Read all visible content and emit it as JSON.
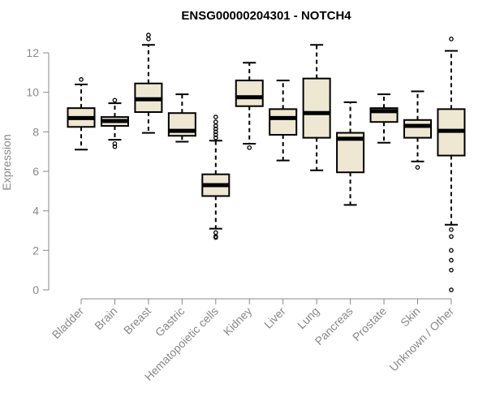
{
  "chart_data": {
    "type": "box",
    "title": "ENSG00000204301 - NOTCH4",
    "xlabel": "",
    "ylabel": "Expression",
    "ylim": [
      0,
      12.5
    ],
    "yticks": [
      0,
      2,
      4,
      6,
      8,
      10,
      12
    ],
    "grid": false,
    "colors": {
      "box_fill": "#EEE8D2",
      "box_stroke": "#000000",
      "axis": "#888888",
      "title": "#000000"
    },
    "categories": [
      "Bladder",
      "Brain",
      "Breast",
      "Gastric",
      "Hematopoietic cells",
      "Kidney",
      "Liver",
      "Lung",
      "Pancreas",
      "Prostate",
      "Skin",
      "Unknown / Other"
    ],
    "boxes": [
      {
        "label": "Bladder",
        "whisker_low": 7.1,
        "q1": 8.25,
        "median": 8.7,
        "q3": 9.2,
        "whisker_high": 10.4,
        "outliers": [
          10.65
        ]
      },
      {
        "label": "Brain",
        "whisker_low": 7.6,
        "q1": 8.3,
        "median": 8.55,
        "q3": 8.75,
        "whisker_high": 9.45,
        "outliers": [
          7.4,
          7.25,
          9.6
        ]
      },
      {
        "label": "Breast",
        "whisker_low": 7.95,
        "q1": 9.0,
        "median": 9.65,
        "q3": 10.45,
        "whisker_high": 12.4,
        "outliers": [
          12.7,
          12.9
        ]
      },
      {
        "label": "Gastric",
        "whisker_low": 7.5,
        "q1": 7.8,
        "median": 8.05,
        "q3": 8.95,
        "whisker_high": 9.9,
        "outliers": []
      },
      {
        "label": "Hematopoietic cells",
        "whisker_low": 3.1,
        "q1": 4.75,
        "median": 5.3,
        "q3": 5.85,
        "whisker_high": 7.55,
        "outliers": [
          2.9,
          2.7,
          2.65,
          7.7,
          7.85,
          8.0,
          8.15,
          8.3,
          8.5,
          8.75
        ]
      },
      {
        "label": "Kidney",
        "whisker_low": 7.4,
        "q1": 9.3,
        "median": 9.75,
        "q3": 10.6,
        "whisker_high": 11.5,
        "outliers": [
          7.2
        ]
      },
      {
        "label": "Liver",
        "whisker_low": 6.55,
        "q1": 7.85,
        "median": 8.7,
        "q3": 9.15,
        "whisker_high": 10.6,
        "outliers": []
      },
      {
        "label": "Lung",
        "whisker_low": 6.05,
        "q1": 7.7,
        "median": 8.95,
        "q3": 10.7,
        "whisker_high": 12.4,
        "outliers": []
      },
      {
        "label": "Pancreas",
        "whisker_low": 4.3,
        "q1": 5.95,
        "median": 7.65,
        "q3": 7.95,
        "whisker_high": 9.5,
        "outliers": []
      },
      {
        "label": "Prostate",
        "whisker_low": 7.45,
        "q1": 8.5,
        "median": 9.05,
        "q3": 9.2,
        "whisker_high": 9.9,
        "outliers": []
      },
      {
        "label": "Skin",
        "whisker_low": 6.5,
        "q1": 7.7,
        "median": 8.3,
        "q3": 8.6,
        "whisker_high": 10.05,
        "outliers": [
          6.2
        ]
      },
      {
        "label": "Unknown / Other",
        "whisker_low": 3.3,
        "q1": 6.8,
        "median": 8.05,
        "q3": 9.15,
        "whisker_high": 12.1,
        "outliers": [
          0.0,
          1.0,
          1.5,
          2.0,
          2.7,
          3.05,
          12.7
        ]
      }
    ]
  }
}
